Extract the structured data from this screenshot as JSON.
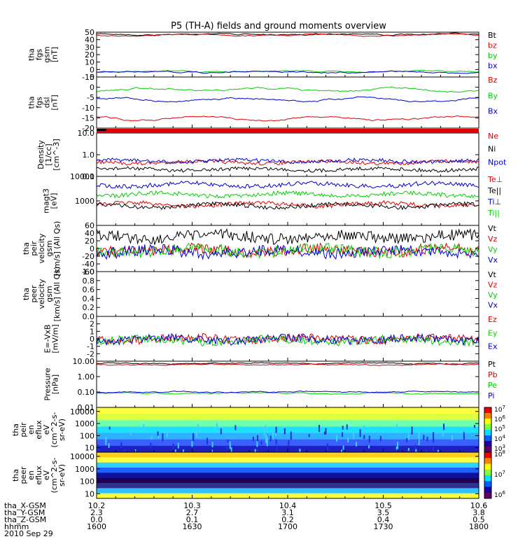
{
  "title": "P5 (TH-A) fields and ground moments overview",
  "colors": {
    "black": "#000000",
    "red": "#e00000",
    "green": "#00d000",
    "blue": "#0000d0"
  },
  "chart_data": [
    {
      "type": "line",
      "ylabel": [
        "tha",
        "fgs",
        "gsm",
        "[nT]"
      ],
      "ylim": [
        -10,
        50
      ],
      "ticks": [
        "50",
        "40",
        "30",
        "20",
        "10",
        "0",
        "-10"
      ],
      "series": [
        {
          "name": "Bt",
          "color": "black"
        },
        {
          "name": "bz",
          "color": "red"
        },
        {
          "name": "by",
          "color": "green"
        },
        {
          "name": "bx",
          "color": "blue"
        }
      ]
    },
    {
      "type": "line",
      "ylabel": [
        "tha",
        "fgs",
        "dsl",
        "[nT]"
      ],
      "ylim": [
        -20,
        5
      ],
      "ticks": [
        "5",
        "0",
        "-5",
        "-10",
        "-15",
        "-20"
      ],
      "series": [
        {
          "name": "Bz",
          "color": "red"
        },
        {
          "name": "By",
          "color": "green"
        },
        {
          "name": "Bx",
          "color": "blue"
        }
      ]
    },
    {
      "type": "line",
      "ylabel": [
        "Density",
        "[1/cc]",
        "[cm^-3]"
      ],
      "yscale": "log",
      "ylim": [
        0.1,
        10
      ],
      "ticks": [
        "10.0",
        "1.0",
        "0.1"
      ],
      "series": [
        {
          "name": "Ne",
          "color": "red"
        },
        {
          "name": "Ni",
          "color": "black"
        },
        {
          "name": "Npot",
          "color": "blue"
        }
      ]
    },
    {
      "type": "line",
      "ylabel": [
        "magt3",
        "[eV]"
      ],
      "yscale": "log",
      "ylim": [
        100,
        10000
      ],
      "ticks": [
        "10000",
        "1000"
      ],
      "series": [
        {
          "name": "Te⊥",
          "color": "red"
        },
        {
          "name": "Te||",
          "color": "black"
        },
        {
          "name": "Ti⊥",
          "color": "blue"
        },
        {
          "name": "Ti||",
          "color": "green"
        }
      ]
    },
    {
      "type": "line",
      "ylabel": [
        "tha",
        "peir",
        "velocity",
        "gsm",
        "[km/s] (All Qs)"
      ],
      "ylim": [
        -60,
        60
      ],
      "ticks": [
        "60",
        "40",
        "20",
        "0",
        "-20",
        "-40",
        "-60"
      ],
      "series": [
        {
          "name": "Vt",
          "color": "black"
        },
        {
          "name": "Vz",
          "color": "red"
        },
        {
          "name": "Vy",
          "color": "green"
        },
        {
          "name": "Vx",
          "color": "blue"
        }
      ]
    },
    {
      "type": "line",
      "ylabel": [
        "tha",
        "peer",
        "velocity",
        "gsm",
        "[km/s] (All Qs)"
      ],
      "ylim": [
        0,
        1
      ],
      "ticks": [
        "1.0",
        "0.8",
        "0.6",
        "0.4",
        "0.2",
        "0.0"
      ],
      "series": [
        {
          "name": "Vt",
          "color": "black"
        },
        {
          "name": "Vz",
          "color": "red"
        },
        {
          "name": "Vy",
          "color": "green"
        },
        {
          "name": "Vx",
          "color": "blue"
        }
      ]
    },
    {
      "type": "line",
      "ylabel": [
        "E=-VxB",
        "[mV/m]"
      ],
      "ylim": [
        -3,
        3
      ],
      "ticks": [
        "2",
        "1",
        "0",
        "-1",
        "-2"
      ],
      "series": [
        {
          "name": "Ez",
          "color": "red"
        },
        {
          "name": "Ey",
          "color": "green"
        },
        {
          "name": "Ex",
          "color": "blue"
        }
      ]
    },
    {
      "type": "line",
      "ylabel": [
        "Pressure",
        "[nPa]"
      ],
      "yscale": "log",
      "ylim": [
        0.01,
        10
      ],
      "ticks": [
        "10.00",
        "1.00",
        "0.10",
        "0.01"
      ],
      "series": [
        {
          "name": "Pt",
          "color": "black"
        },
        {
          "name": "Pb",
          "color": "red"
        },
        {
          "name": "Pe",
          "color": "green"
        },
        {
          "name": "Pi",
          "color": "blue"
        }
      ]
    },
    {
      "type": "heatmap",
      "ylabel": [
        "tha",
        "peir",
        "en",
        "eflux",
        "eV",
        "(cm^2-s-",
        "sr-eV)"
      ],
      "yscale": "log",
      "ticks": [
        "10000",
        "1000",
        "100",
        "10"
      ],
      "colorbar": [
        "10^7",
        "10^6",
        "10^5",
        "10^4",
        "10^3"
      ]
    },
    {
      "type": "heatmap",
      "ylabel": [
        "tha",
        "peer",
        "en",
        "eflux",
        "eV",
        "(cm^2-s-",
        "sr-eV)"
      ],
      "yscale": "log",
      "ticks": [
        "10000",
        "1000",
        "100",
        "10"
      ],
      "colorbar": [
        "10^8",
        "10^7",
        "10^6"
      ]
    }
  ],
  "xaxis": {
    "rows": [
      {
        "label": "tha_X-GSM",
        "values": [
          "10.2",
          "10.3",
          "10.4",
          "10.5",
          "10.6"
        ]
      },
      {
        "label": "tha_Y-GSM",
        "values": [
          "2.3",
          "2.7",
          "3.1",
          "3.5",
          "3.8"
        ]
      },
      {
        "label": "tha_Z-GSM",
        "values": [
          "0.0",
          "0.1",
          "0.2",
          "0.4",
          "0.5"
        ]
      },
      {
        "label": "hhmm",
        "values": [
          "1600",
          "1630",
          "1700",
          "1730",
          "1800"
        ]
      }
    ],
    "date": "2010 Sep 29"
  }
}
